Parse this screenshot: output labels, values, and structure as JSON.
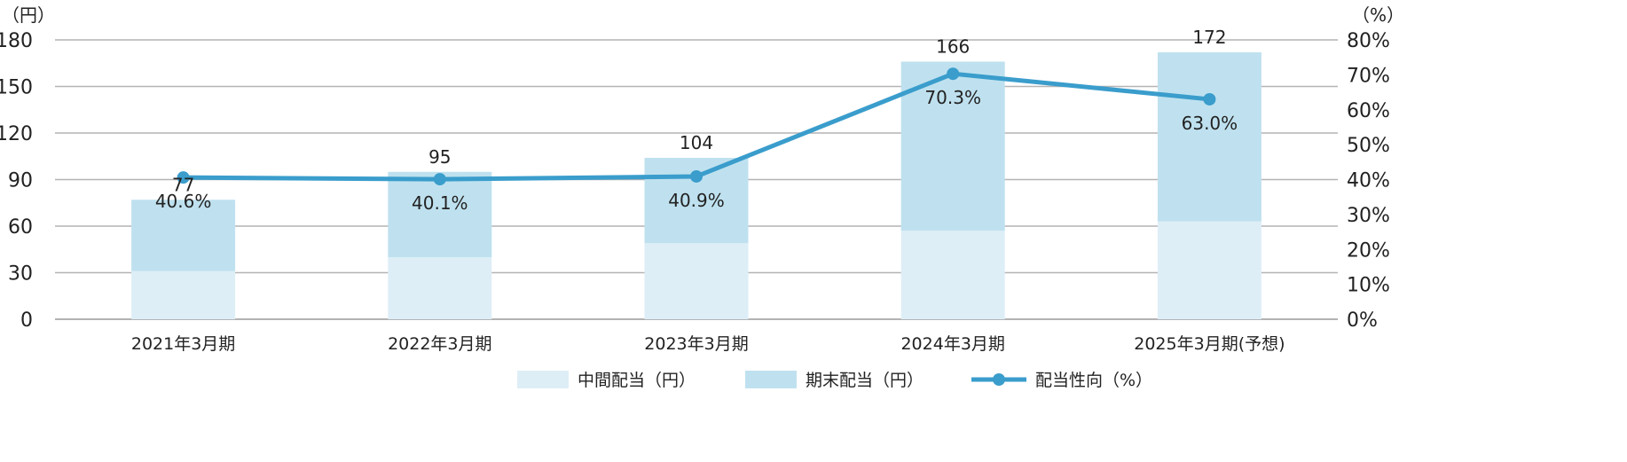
{
  "chart_data": {
    "type": "bar",
    "stacked": true,
    "categories": [
      "2021年3月期",
      "2022年3月期",
      "2023年3月期",
      "2024年3月期",
      "2025年3月期(予想)"
    ],
    "series": [
      {
        "name": "中間配当（円）",
        "values": [
          31,
          40,
          49,
          57,
          63
        ],
        "color": "#deeef7",
        "axis": "left"
      },
      {
        "name": "期末配当（円）",
        "values": [
          46,
          55,
          55,
          109,
          109
        ],
        "color": "#bfe1ef",
        "axis": "left"
      }
    ],
    "totals": [
      "77",
      "95",
      "104",
      "166",
      "172"
    ],
    "line": {
      "name": "配当性向（%）",
      "values": [
        40.6,
        40.1,
        40.9,
        70.3,
        63.0
      ],
      "labels": [
        "40.6%",
        "40.1%",
        "40.9%",
        "70.3%",
        "63.0%"
      ],
      "color": "#3a9dcc",
      "axis": "right"
    },
    "left_axis": {
      "unit": "（円）",
      "ylim": [
        0,
        180
      ],
      "ticks": [
        "0",
        "30",
        "60",
        "90",
        "120",
        "150",
        "180"
      ]
    },
    "right_axis": {
      "unit": "（%）",
      "ylim": [
        0,
        80
      ],
      "ticks": [
        "0%",
        "10%",
        "20%",
        "30%",
        "40%",
        "50%",
        "60%",
        "70%",
        "80%"
      ]
    },
    "grid": true,
    "legend_position": "bottom-center"
  }
}
